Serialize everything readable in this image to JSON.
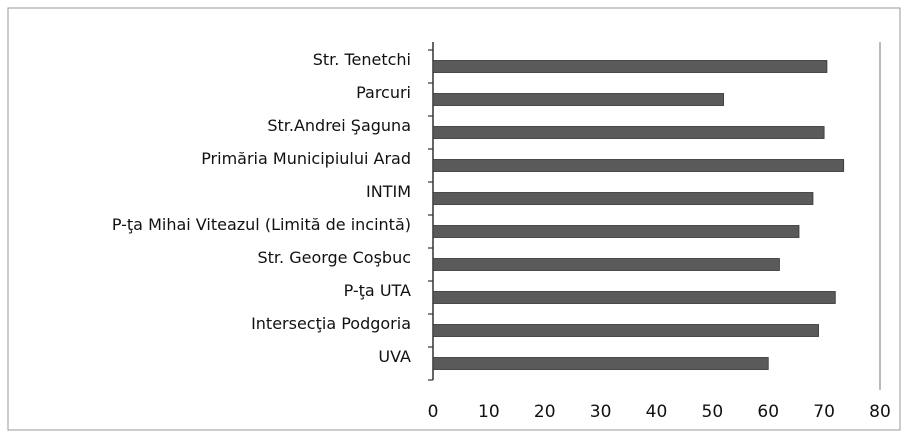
{
  "chart_data": {
    "type": "bar",
    "orientation": "horizontal",
    "categories": [
      "Str. Tenetchi",
      "Parcuri",
      "Str.Andrei Şaguna",
      "Primăria Municipiului Arad",
      "INTIM",
      "P-ţa Mihai Viteazul (Limită de incintă)",
      "Str. George Coşbuc",
      "P-ţa UTA",
      "Intersecţia Podgoria",
      "UVA"
    ],
    "values": [
      70.5,
      52,
      70,
      73.5,
      68,
      65.5,
      62,
      72,
      69,
      60
    ],
    "color": "#5a5a5a",
    "xlim": [
      0,
      80
    ],
    "xticks": [
      0,
      10,
      20,
      30,
      40,
      50,
      60,
      70,
      80
    ],
    "grid": false
  }
}
